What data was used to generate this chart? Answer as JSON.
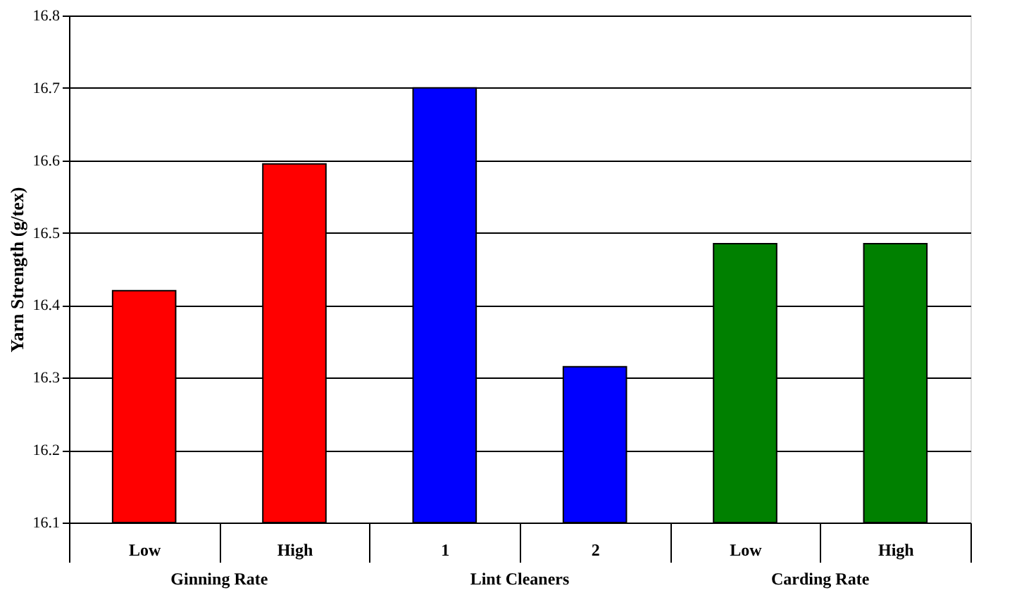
{
  "chart_data": {
    "type": "bar",
    "ylabel": "Yarn Strength (g/tex)",
    "categories": [
      "Low",
      "High",
      "1",
      "2",
      "Low",
      "High"
    ],
    "values": [
      16.42,
      16.595,
      16.7,
      16.315,
      16.485,
      16.485
    ],
    "colors": [
      "#ff0000",
      "#ff0000",
      "#0000ff",
      "#0000ff",
      "#008000",
      "#008000"
    ],
    "ylim": [
      16.1,
      16.8
    ],
    "yticks": [
      16.1,
      16.2,
      16.3,
      16.4,
      16.5,
      16.6,
      16.7,
      16.8
    ],
    "grid": "y",
    "annotations": [
      "Ginning Rate",
      "Lint Cleaners",
      "Carding Rate"
    ]
  }
}
